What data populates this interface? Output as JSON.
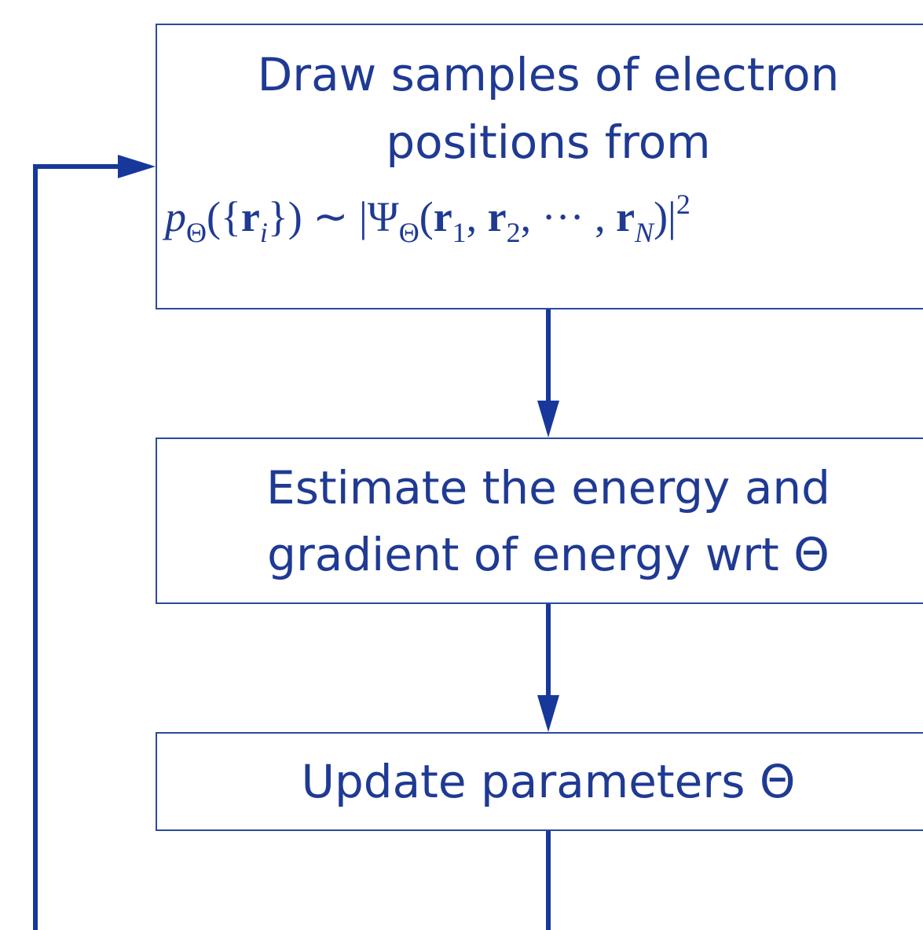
{
  "nodes": [
    {
      "lines": [
        "Draw samples of electron",
        "positions from"
      ],
      "formula": [
        "p",
        "Θ",
        "({",
        "r",
        "i",
        "}) ∼ |Ψ",
        "Θ",
        "(",
        "r",
        "1",
        ", ",
        "r",
        "2",
        ", ··· , ",
        "r",
        "N",
        ")|",
        "2"
      ]
    },
    {
      "lines": [
        "Estimate the energy and",
        "gradient of energy wrt Θ"
      ]
    },
    {
      "lines": [
        "Update parameters Θ"
      ]
    }
  ]
}
